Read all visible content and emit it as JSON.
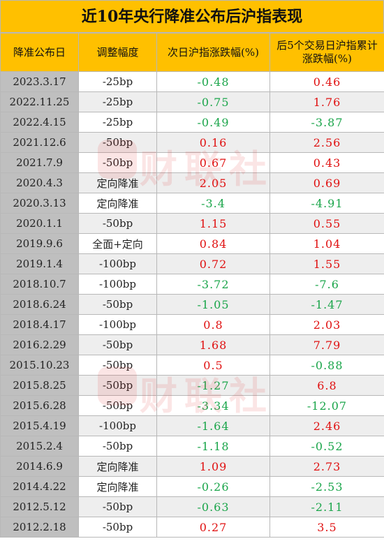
{
  "title": "近10年央行降准公布后沪指表现",
  "headers": [
    "降准公布日",
    "调整幅度",
    "次日沪指涨跌幅(%)",
    "后5个交易日沪指累计涨跌幅(%)"
  ],
  "rows": [
    {
      "date": "2023.3.17",
      "adj": "-25bp",
      "next": "-0.48",
      "five": "0.46"
    },
    {
      "date": "2022.11.25",
      "adj": "-25bp",
      "next": "-0.75",
      "five": "1.76"
    },
    {
      "date": "2022.4.15",
      "adj": "-25bp",
      "next": "-0.49",
      "five": "-3.87"
    },
    {
      "date": "2021.12.6",
      "adj": "-50bp",
      "next": "0.16",
      "five": "2.56"
    },
    {
      "date": "2021.7.9",
      "adj": "-50bp",
      "next": "0.67",
      "five": "0.43"
    },
    {
      "date": "2020.4.3",
      "adj": "定向降准",
      "next": "2.05",
      "five": "0.69"
    },
    {
      "date": "2020.3.13",
      "adj": "定向降准",
      "next": "-3.4",
      "five": "-4.91"
    },
    {
      "date": "2020.1.1",
      "adj": "-50bp",
      "next": "1.15",
      "five": "0.55"
    },
    {
      "date": "2019.9.6",
      "adj": "全面+定向",
      "next": "0.84",
      "five": "1.04"
    },
    {
      "date": "2019.1.4",
      "adj": "-100bp",
      "next": "0.72",
      "five": "1.55"
    },
    {
      "date": "2018.10.7",
      "adj": "-100bp",
      "next": "-3.72",
      "five": "-7.6"
    },
    {
      "date": "2018.6.24",
      "adj": "-50bp",
      "next": "-1.05",
      "five": "-1.47"
    },
    {
      "date": "2018.4.17",
      "adj": "-100bp",
      "next": "0.8",
      "five": "2.03"
    },
    {
      "date": "2016.2.29",
      "adj": "-50bp",
      "next": "1.68",
      "five": "7.79"
    },
    {
      "date": "2015.10.23",
      "adj": "-50bp",
      "next": "0.5",
      "five": "-0.88"
    },
    {
      "date": "2015.8.25",
      "adj": "-50bp",
      "next": "-1.27",
      "five": "6.8"
    },
    {
      "date": "2015.6.28",
      "adj": "-50bp",
      "next": "-3.34",
      "five": "-12.07"
    },
    {
      "date": "2015.4.19",
      "adj": "-100bp",
      "next": "-1.64",
      "five": "2.46"
    },
    {
      "date": "2015.2.4",
      "adj": "-50bp",
      "next": "-1.18",
      "five": "-0.52"
    },
    {
      "date": "2014.6.9",
      "adj": "定向降准",
      "next": "1.09",
      "five": "2.73"
    },
    {
      "date": "2014.4.22",
      "adj": "定向降准",
      "next": "-0.26",
      "five": "-2.53"
    },
    {
      "date": "2012.5.12",
      "adj": "-50bp",
      "next": "-0.63",
      "five": "-2.11"
    },
    {
      "date": "2012.2.18",
      "adj": "-50bp",
      "next": "0.27",
      "five": "3.5"
    }
  ],
  "watermark": "财联社",
  "colors": {
    "header_bg": "#ffc000",
    "positive": "#e01010",
    "negative": "#1aa54a",
    "date_bg": "#bfbfbf"
  }
}
